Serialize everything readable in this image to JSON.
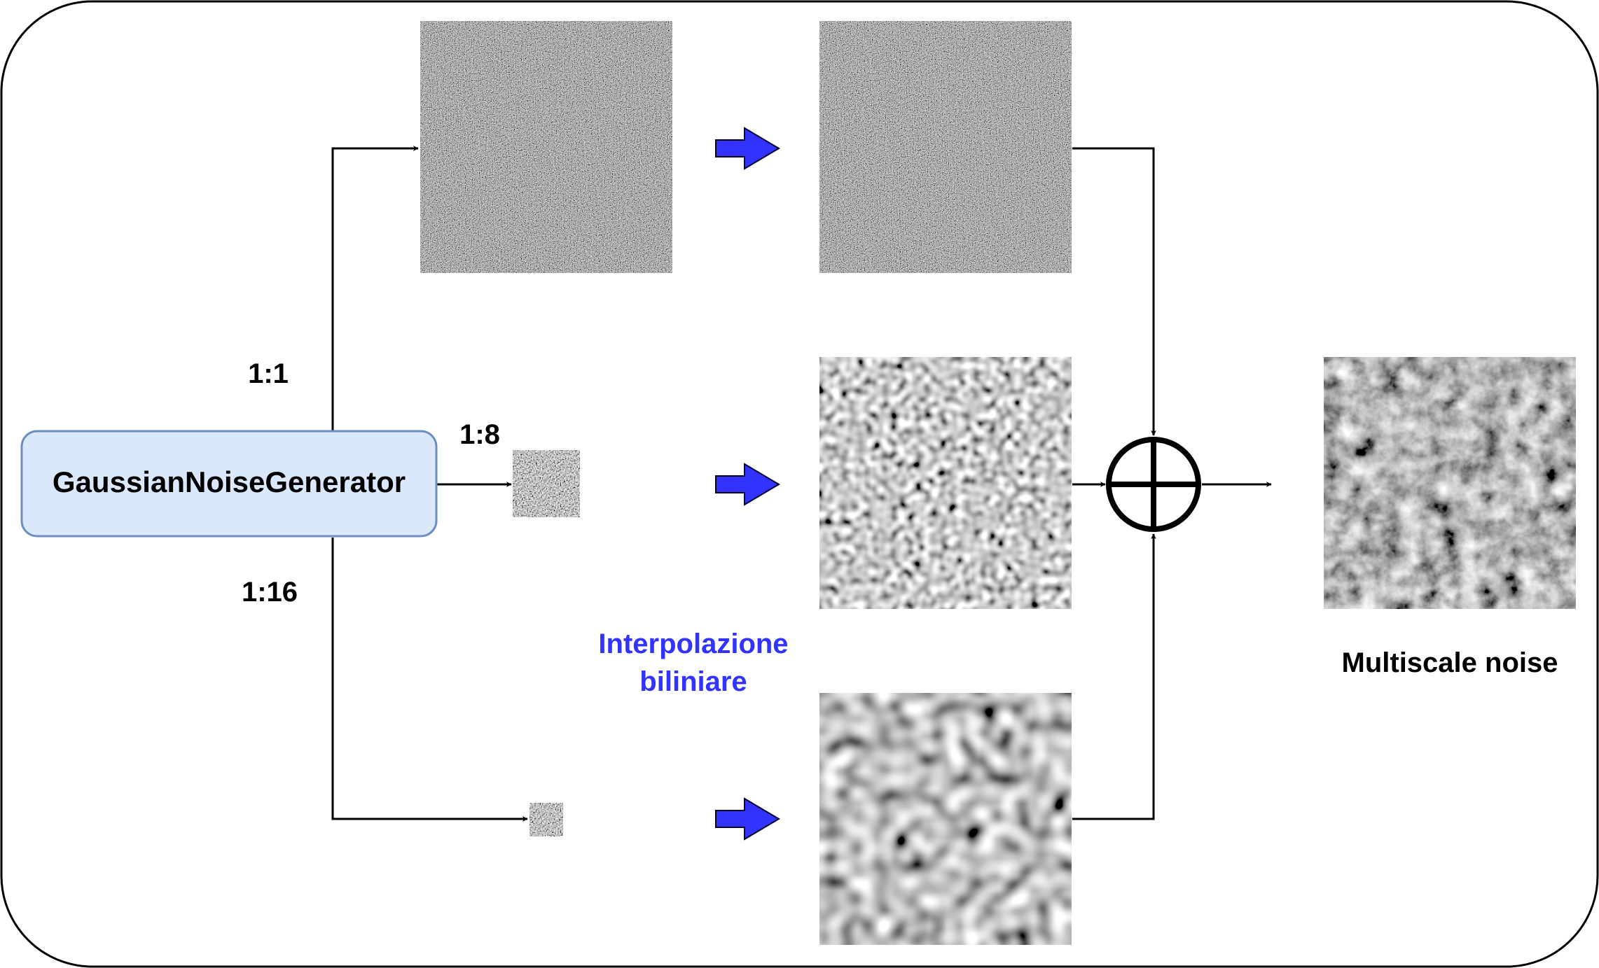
{
  "generator": {
    "label": "GaussianNoiseGenerator"
  },
  "scales": {
    "full": "1:1",
    "eighth": "1:8",
    "sixteenth": "1:16"
  },
  "interpolation": {
    "line1": "Interpolazione",
    "line2": "biliniare"
  },
  "output": {
    "label": "Multiscale noise"
  },
  "colors": {
    "generator_fill": "#dae8fc",
    "generator_stroke": "#6c8ebf",
    "interp_arrow": "#3333ff",
    "interp_text": "#3333ff",
    "line": "#000000"
  },
  "icons": {
    "sum": "circled-plus-icon",
    "upsample": "block-arrow-right-icon"
  }
}
